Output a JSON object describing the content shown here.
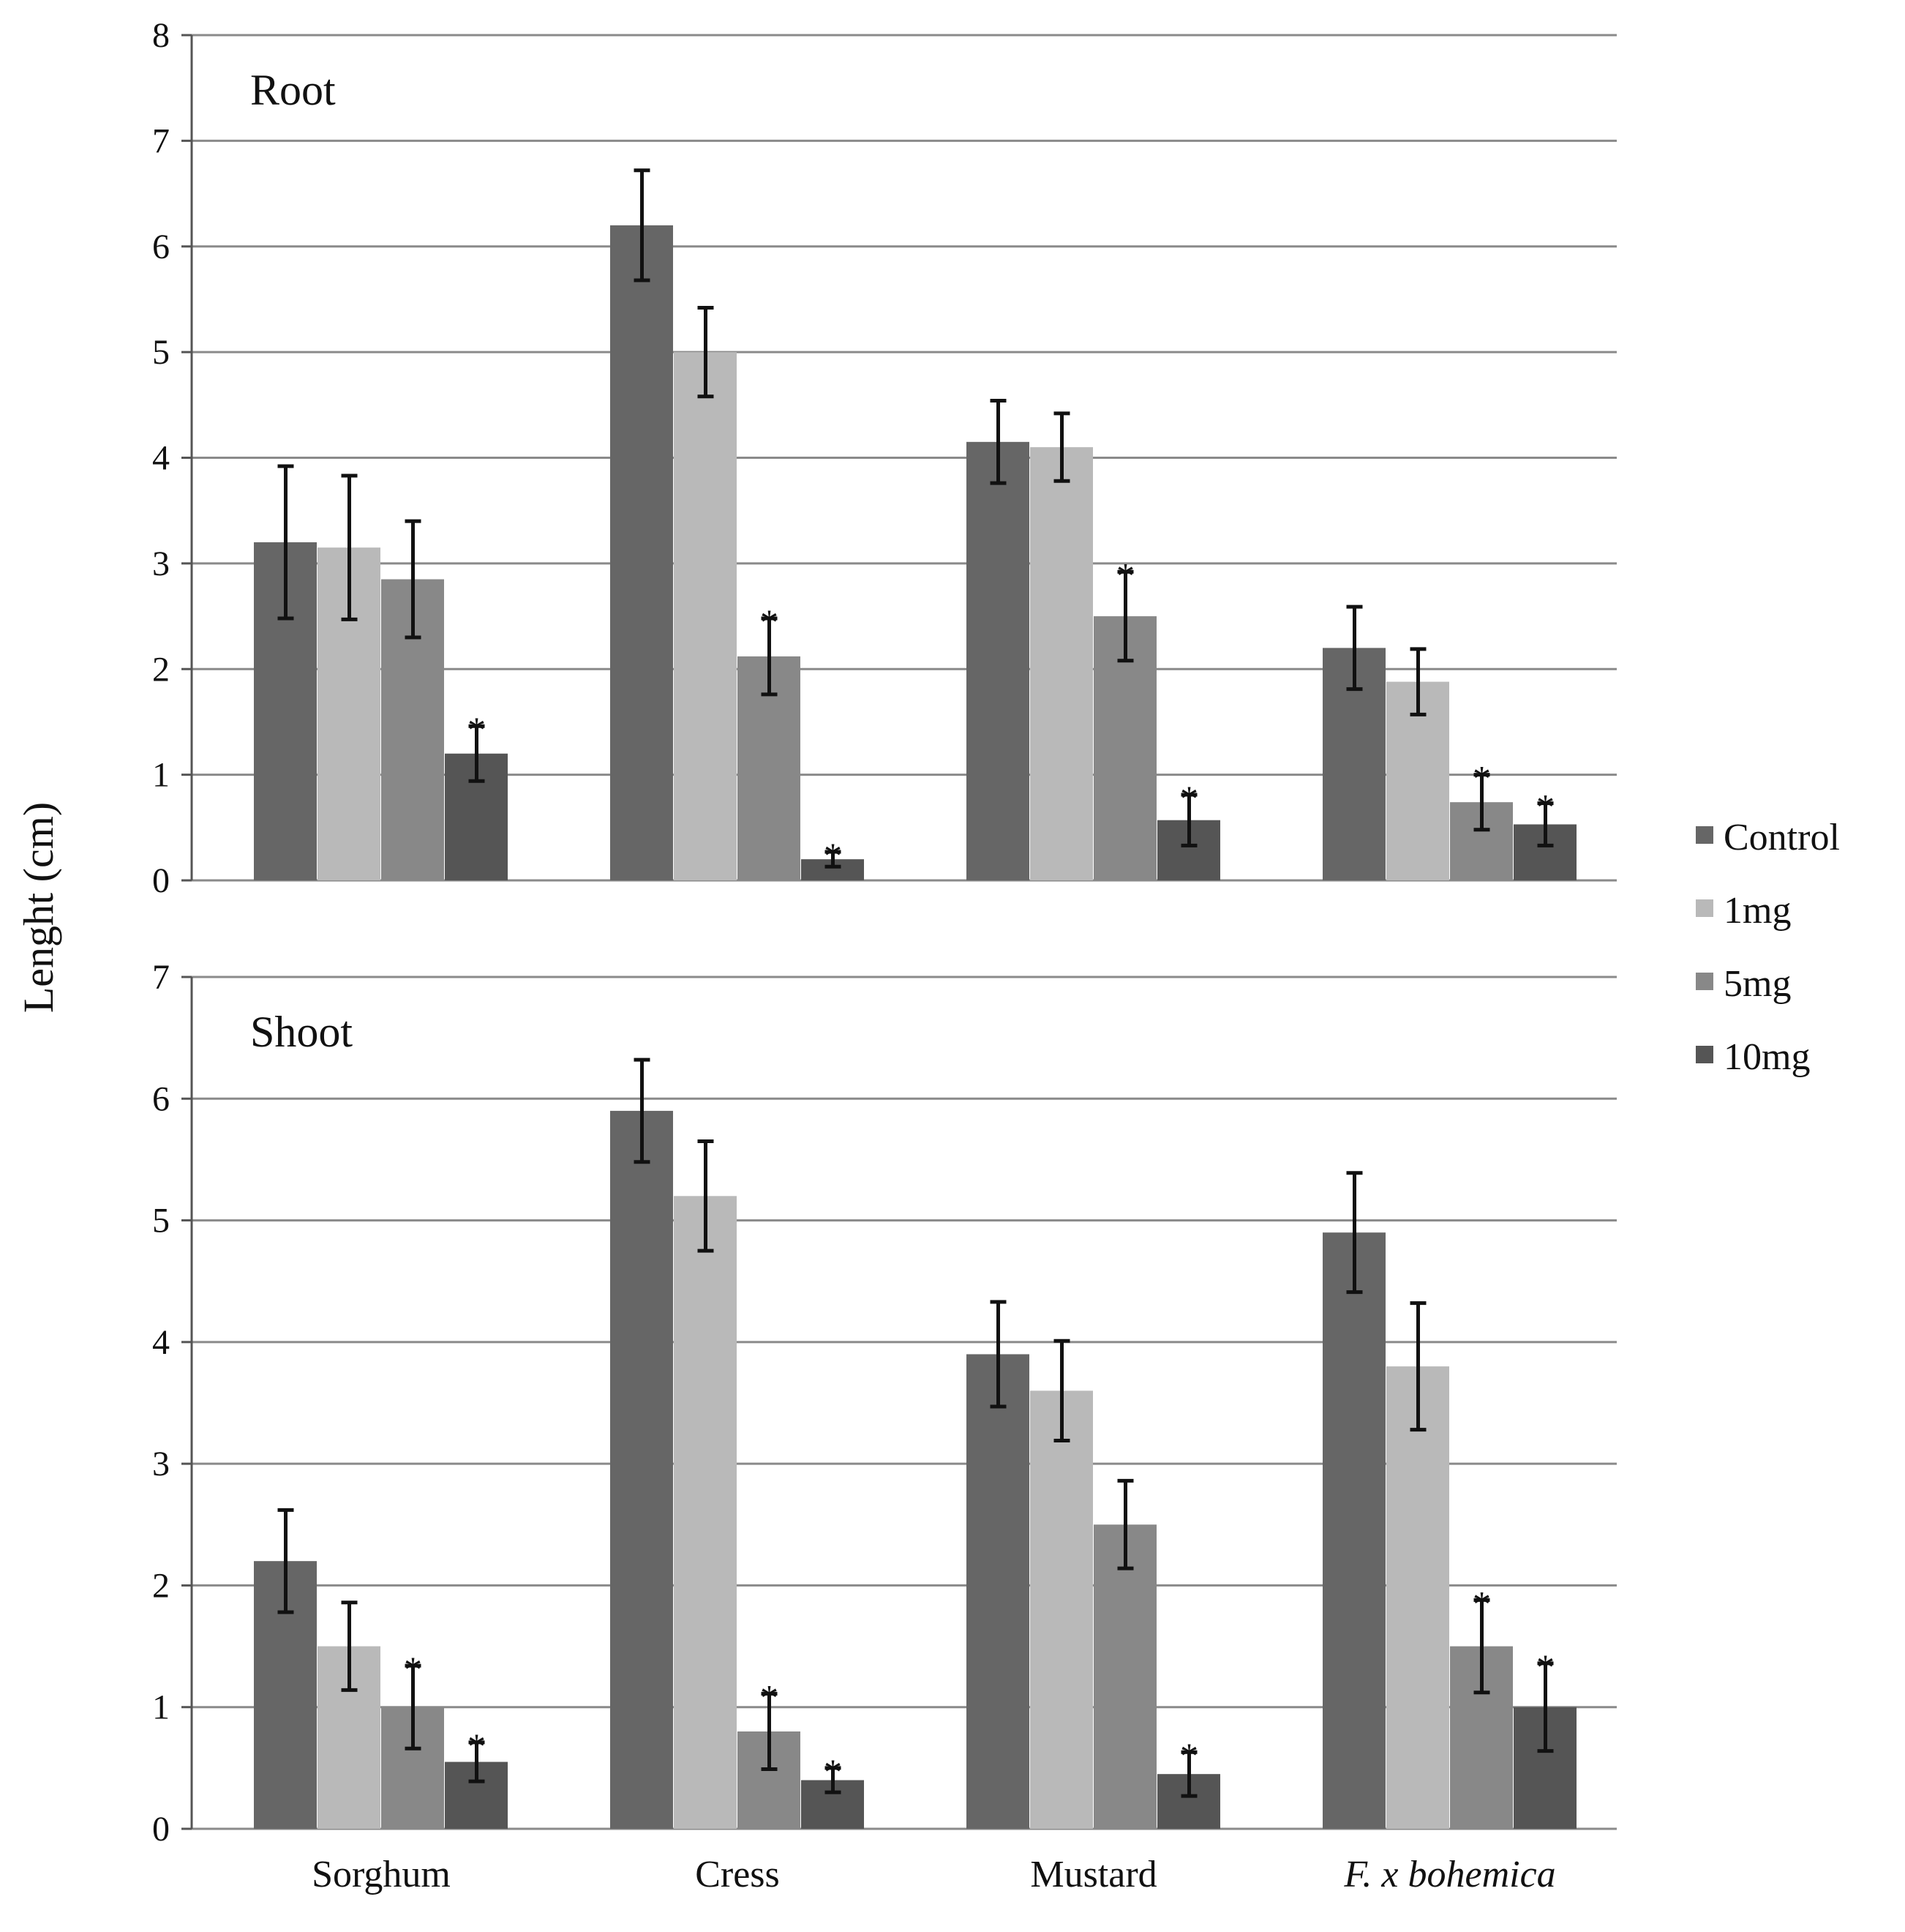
{
  "chart_data": {
    "type": "bar",
    "ylabel": "Lenght (cm)",
    "categories": [
      "Sorghum",
      "Cress",
      "Mustard",
      "F. x bohemica"
    ],
    "italic_categories": [
      "F. x bohemica"
    ],
    "legend": [
      "Control",
      "1mg",
      "5mg",
      "10mg"
    ],
    "legend_position": "right",
    "colors": [
      "#666666",
      "#b9b9b9",
      "#888888",
      "#555555"
    ],
    "panels": [
      {
        "title": "Root",
        "ylim": [
          0,
          8
        ],
        "yticks": [
          0,
          1,
          2,
          3,
          4,
          5,
          6,
          7,
          8
        ],
        "grid": true,
        "series": [
          {
            "name": "Control",
            "values": [
              3.2,
              6.2,
              4.15,
              2.2
            ],
            "errors": [
              0.72,
              0.52,
              0.39,
              0.39
            ]
          },
          {
            "name": "1mg",
            "values": [
              3.15,
              5.0,
              4.1,
              1.88
            ],
            "errors": [
              0.68,
              0.42,
              0.32,
              0.31
            ]
          },
          {
            "name": "5mg",
            "values": [
              2.85,
              2.12,
              2.5,
              0.74
            ],
            "errors": [
              0.55,
              0.36,
              0.42,
              0.26
            ]
          },
          {
            "name": "10mg",
            "values": [
              1.2,
              0.2,
              0.57,
              0.53
            ],
            "errors": [
              0.26,
              0.07,
              0.24,
              0.2
            ]
          }
        ],
        "significant": [
          [
            false,
            false,
            false,
            true
          ],
          [
            false,
            false,
            true,
            true
          ],
          [
            false,
            false,
            true,
            true
          ],
          [
            false,
            false,
            true,
            true
          ]
        ]
      },
      {
        "title": "Shoot",
        "ylim": [
          0,
          7
        ],
        "yticks": [
          0,
          1,
          2,
          3,
          4,
          5,
          6,
          7
        ],
        "grid": true,
        "series": [
          {
            "name": "Control",
            "values": [
              2.2,
              5.9,
              3.9,
              4.9
            ],
            "errors": [
              0.42,
              0.42,
              0.43,
              0.49
            ]
          },
          {
            "name": "1mg",
            "values": [
              1.5,
              5.2,
              3.6,
              3.8
            ],
            "errors": [
              0.36,
              0.45,
              0.41,
              0.52
            ]
          },
          {
            "name": "5mg",
            "values": [
              1.0,
              0.8,
              2.5,
              1.5
            ],
            "errors": [
              0.34,
              0.31,
              0.36,
              0.38
            ]
          },
          {
            "name": "10mg",
            "values": [
              0.55,
              0.4,
              0.45,
              1.0
            ],
            "errors": [
              0.16,
              0.1,
              0.18,
              0.36
            ]
          }
        ],
        "significant": [
          [
            false,
            false,
            true,
            true
          ],
          [
            false,
            false,
            true,
            true
          ],
          [
            false,
            false,
            false,
            true
          ],
          [
            false,
            false,
            true,
            true
          ]
        ]
      }
    ]
  }
}
